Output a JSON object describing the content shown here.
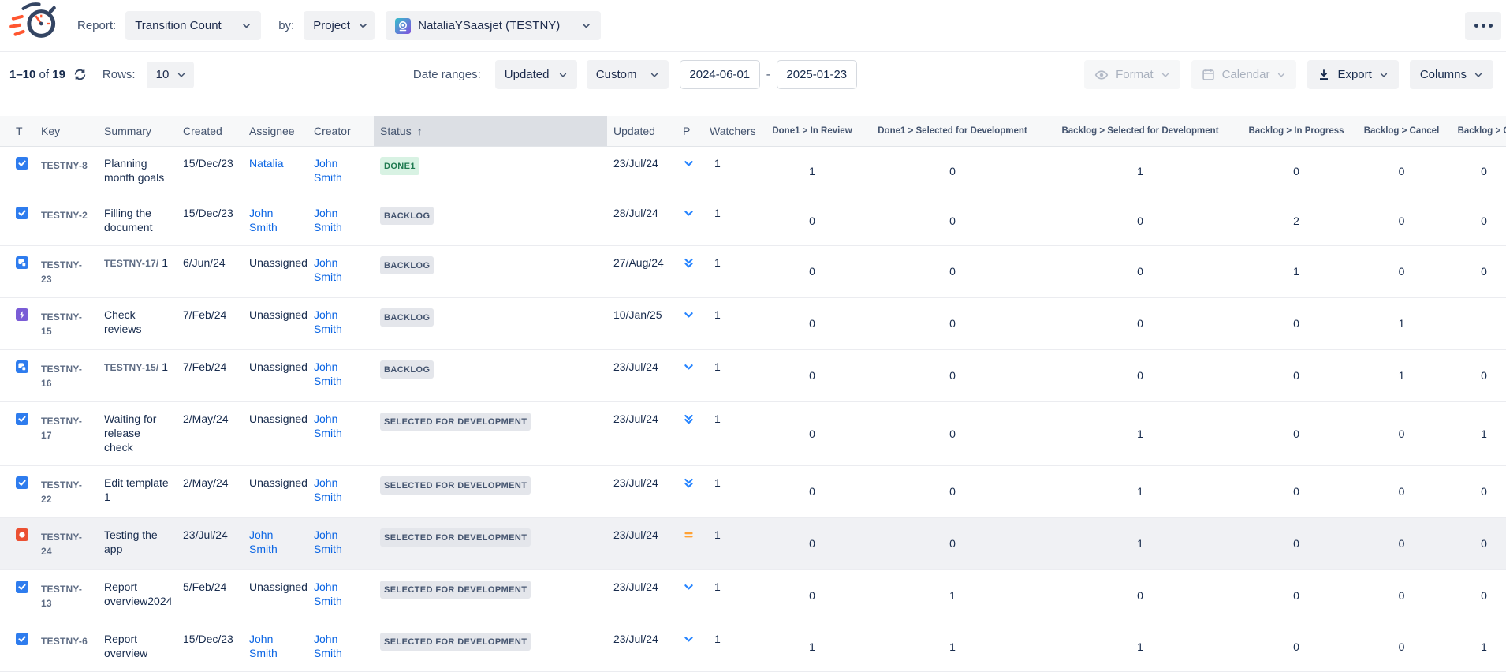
{
  "header": {
    "report_label": "Report:",
    "report_value": "Transition Count",
    "by_label": "by:",
    "by_value": "Project",
    "project_value": "NataliaYSaasjet (TESTNY)"
  },
  "toolbar": {
    "pagination": {
      "range": "1–10",
      "of": "of",
      "total": "19"
    },
    "rows_label": "Rows:",
    "rows_value": "10",
    "date_ranges_label": "Date ranges:",
    "date_field_value": "Updated",
    "date_mode_value": "Custom",
    "date_from": "2024-06-01",
    "date_separator": "-",
    "date_to": "2025-01-23",
    "format_label": "Format",
    "calendar_label": "Calendar",
    "export_label": "Export",
    "columns_label": "Columns"
  },
  "table": {
    "columns": [
      "T",
      "Key",
      "Summary",
      "Created",
      "Assignee",
      "Creator",
      "Status",
      "Updated",
      "P",
      "Watchers",
      "Done1 > In Review",
      "Done1 > Selected for Development",
      "Backlog > Selected for Development",
      "Backlog > In Progress",
      "Backlog > Cancel",
      "Backlog > O"
    ],
    "sort": {
      "column": "Status",
      "direction": "ascending"
    },
    "rows": [
      {
        "type": "task",
        "key": "TESTNY-8",
        "summary_prefix": "",
        "summary": "Planning month goals",
        "created": "15/Dec/23",
        "assignee": "Natalia",
        "assignee_is_link": true,
        "creator": "John Smith",
        "creator_is_link": true,
        "status": "DONE1",
        "status_variant": "success",
        "updated": "23/Jul/24",
        "priority": "low",
        "watchers": "1",
        "transitions": [
          "1",
          "0",
          "1",
          "0",
          "0",
          "0"
        ],
        "highlighted": false
      },
      {
        "type": "task",
        "key": "TESTNY-2",
        "summary_prefix": "",
        "summary": "Filling the document",
        "created": "15/Dec/23",
        "assignee": "John Smith",
        "assignee_is_link": true,
        "creator": "John Smith",
        "creator_is_link": true,
        "status": "BACKLOG",
        "status_variant": "default",
        "updated": "28/Jul/24",
        "priority": "low",
        "watchers": "1",
        "transitions": [
          "0",
          "0",
          "0",
          "2",
          "0",
          "0"
        ],
        "highlighted": false
      },
      {
        "type": "subtask",
        "key": "TESTNY-23",
        "summary_prefix": "TESTNY-17/",
        "summary": "1",
        "created": "6/Jun/24",
        "assignee": "Unassigned",
        "assignee_is_link": false,
        "creator": "John Smith",
        "creator_is_link": true,
        "status": "BACKLOG",
        "status_variant": "default",
        "updated": "27/Aug/24",
        "priority": "lowest",
        "watchers": "1",
        "transitions": [
          "0",
          "0",
          "0",
          "1",
          "0",
          "0"
        ],
        "highlighted": false
      },
      {
        "type": "epic",
        "key": "TESTNY-15",
        "summary_prefix": "",
        "summary": "Check reviews",
        "created": "7/Feb/24",
        "assignee": "Unassigned",
        "assignee_is_link": false,
        "creator": "John Smith",
        "creator_is_link": true,
        "status": "BACKLOG",
        "status_variant": "default",
        "updated": "10/Jan/25",
        "priority": "low",
        "watchers": "1",
        "transitions": [
          "0",
          "0",
          "0",
          "0",
          "1",
          ""
        ],
        "highlighted": false
      },
      {
        "type": "subtask",
        "key": "TESTNY-16",
        "summary_prefix": "TESTNY-15/",
        "summary": "1",
        "created": "7/Feb/24",
        "assignee": "Unassigned",
        "assignee_is_link": false,
        "creator": "John Smith",
        "creator_is_link": true,
        "status": "BACKLOG",
        "status_variant": "default",
        "updated": "23/Jul/24",
        "priority": "low",
        "watchers": "1",
        "transitions": [
          "0",
          "0",
          "0",
          "0",
          "1",
          "0"
        ],
        "highlighted": false
      },
      {
        "type": "task",
        "key": "TESTNY-17",
        "summary_prefix": "",
        "summary": "Waiting for release check",
        "created": "2/May/24",
        "assignee": "Unassigned",
        "assignee_is_link": false,
        "creator": "John Smith",
        "creator_is_link": true,
        "status": "SELECTED FOR DEVELOPMENT",
        "status_variant": "default",
        "updated": "23/Jul/24",
        "priority": "lowest",
        "watchers": "1",
        "transitions": [
          "0",
          "0",
          "1",
          "0",
          "0",
          "1"
        ],
        "highlighted": false
      },
      {
        "type": "task",
        "key": "TESTNY-22",
        "summary_prefix": "",
        "summary": "Edit template 1",
        "created": "2/May/24",
        "assignee": "Unassigned",
        "assignee_is_link": false,
        "creator": "John Smith",
        "creator_is_link": true,
        "status": "SELECTED FOR DEVELOPMENT",
        "status_variant": "default",
        "updated": "23/Jul/24",
        "priority": "lowest",
        "watchers": "1",
        "transitions": [
          "0",
          "0",
          "1",
          "0",
          "0",
          "0"
        ],
        "highlighted": false
      },
      {
        "type": "bug",
        "key": "TESTNY-24",
        "summary_prefix": "",
        "summary": "Testing the app",
        "created": "23/Jul/24",
        "assignee": "John Smith",
        "assignee_is_link": true,
        "creator": "John Smith",
        "creator_is_link": true,
        "status": "SELECTED FOR DEVELOPMENT",
        "status_variant": "default",
        "updated": "23/Jul/24",
        "priority": "medium",
        "watchers": "1",
        "transitions": [
          "0",
          "0",
          "1",
          "0",
          "0",
          "0"
        ],
        "highlighted": true
      },
      {
        "type": "task",
        "key": "TESTNY-13",
        "summary_prefix": "",
        "summary": "Report overview2024",
        "created": "5/Feb/24",
        "assignee": "Unassigned",
        "assignee_is_link": false,
        "creator": "John Smith",
        "creator_is_link": true,
        "status": "SELECTED FOR DEVELOPMENT",
        "status_variant": "default",
        "updated": "23/Jul/24",
        "priority": "low",
        "watchers": "1",
        "transitions": [
          "0",
          "1",
          "0",
          "0",
          "0",
          "0"
        ],
        "highlighted": false
      },
      {
        "type": "task",
        "key": "TESTNY-6",
        "summary_prefix": "",
        "summary": "Report overview",
        "created": "15/Dec/23",
        "assignee": "John Smith",
        "assignee_is_link": true,
        "creator": "John Smith",
        "creator_is_link": true,
        "status": "SELECTED FOR DEVELOPMENT",
        "status_variant": "default",
        "updated": "23/Jul/24",
        "priority": "low",
        "watchers": "1",
        "transitions": [
          "1",
          "1",
          "1",
          "0",
          "0",
          "1"
        ],
        "highlighted": false
      }
    ]
  },
  "icons": {
    "app-logo": "stopwatch-with-speed-lines",
    "refresh-icon": "⟳",
    "more-icon": "⋯",
    "chevron-down-icon": "⌄",
    "eye-icon": "👁",
    "calendar-icon": "📅",
    "export-icon": "⭳",
    "sort-ascending-icon": "↑",
    "task-icon": "✓",
    "subtask-icon": "❏",
    "epic-icon": "⚡",
    "bug-icon": "●",
    "priority-low-icon": "⌄",
    "priority-lowest-icon": "⌄⌄",
    "priority-medium-icon": "="
  },
  "colors": {
    "link_blue": "#0C66E4",
    "text_dark": "#172B4D",
    "text_muted": "#44546F",
    "control_bg": "#F1F2F4",
    "sorted_header_bg": "#DCDFE4",
    "highlight_row_bg": "#F0F1F4",
    "lozenge_bg": "#E4E6EB",
    "lozenge_done_bg": "#D8F2E3",
    "lozenge_done_text": "#1F7A50",
    "task_blue": "#2E7CEE",
    "epic_purple": "#7A5CD6",
    "bug_red": "#EB5032",
    "priority_blue": "#2684FF",
    "priority_orange": "#FFA133",
    "logo_navy": "#344563",
    "logo_orange": "#FF5630"
  }
}
